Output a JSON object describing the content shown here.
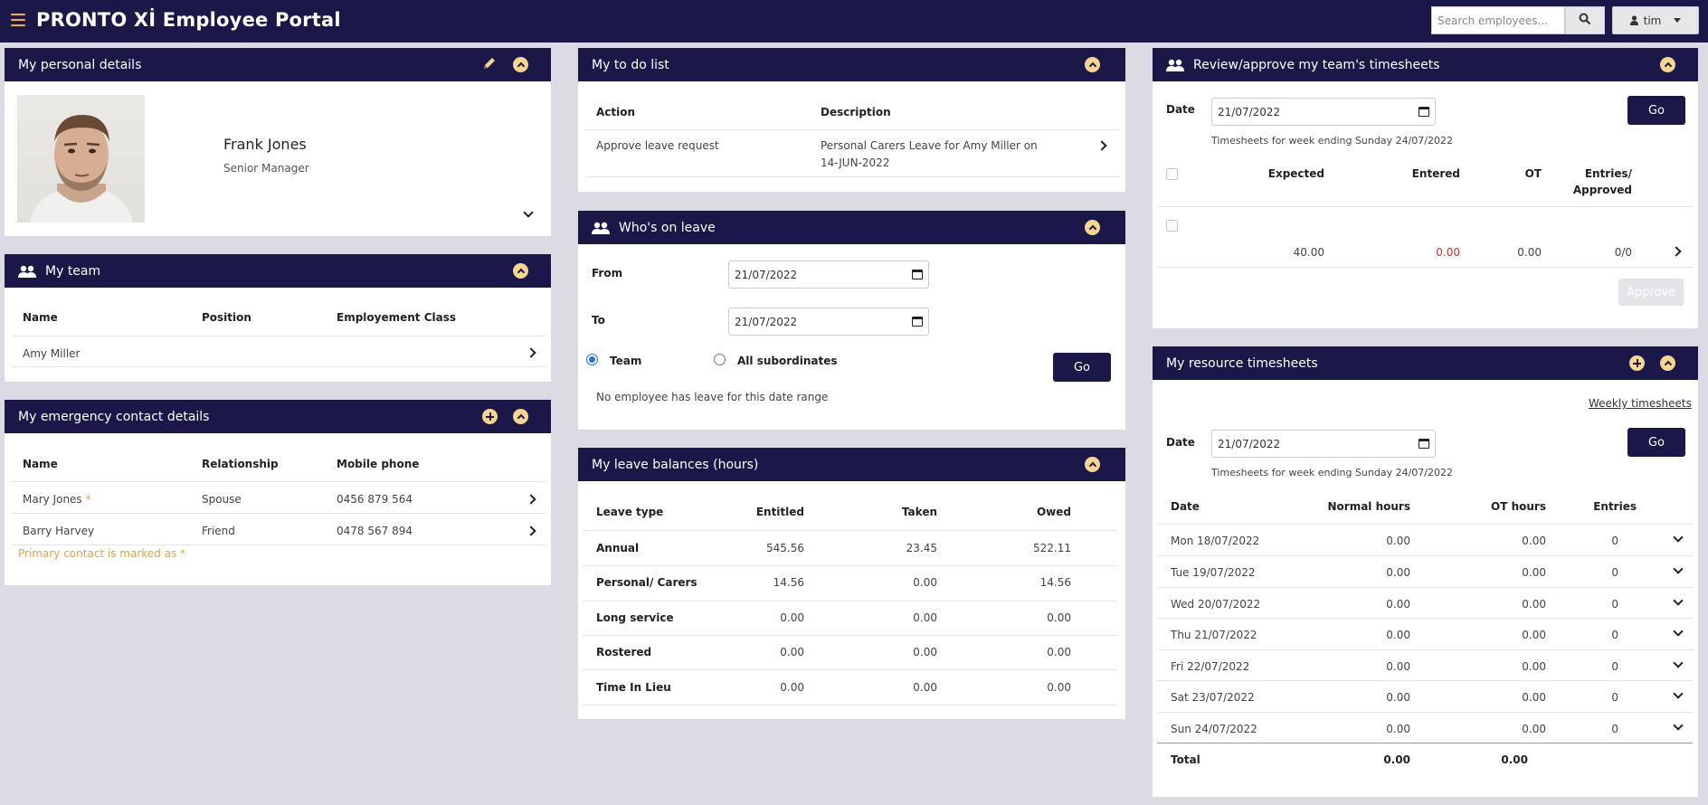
{
  "header": {
    "brand": "PRONTO Xİ Employee Portal",
    "search_placeholder": "Search employees...",
    "user": "tim"
  },
  "personal": {
    "title": "My personal details",
    "name": "Frank Jones",
    "role": "Senior Manager"
  },
  "team": {
    "title": "My team",
    "columns": [
      "Name",
      "Position",
      "Employement Class"
    ],
    "rows": [
      {
        "name": "Amy Miller",
        "position": "",
        "class": ""
      }
    ]
  },
  "emergency": {
    "title": "My emergency contact details",
    "columns": [
      "Name",
      "Relationship",
      "Mobile phone"
    ],
    "rows": [
      {
        "name": "Mary Jones",
        "star": "*",
        "relationship": "Spouse",
        "phone": "0456 879 564"
      },
      {
        "name": "Barry Harvey",
        "star": "",
        "relationship": "Friend",
        "phone": "0478 567 894"
      }
    ],
    "note": "Primary contact is marked as *"
  },
  "todo": {
    "title": "My to do list",
    "columns": [
      "Action",
      "Description"
    ],
    "rows": [
      {
        "action": "Approve leave request",
        "desc_line1": "Personal Carers Leave for Amy Miller on",
        "desc_line2": "14-JUN-2022"
      }
    ]
  },
  "leave": {
    "title": "Who's on leave",
    "from_label": "From",
    "from_value": "21/07/2022",
    "to_label": "To",
    "to_value": "21/07/2022",
    "radio_team": "Team",
    "radio_all": "All subordinates",
    "go": "Go",
    "empty": "No employee has leave for this date range"
  },
  "balances": {
    "title": "My leave balances (hours)",
    "columns": [
      "Leave type",
      "Entitled",
      "Taken",
      "Owed"
    ],
    "rows": [
      {
        "type": "Annual",
        "entitled": "545.56",
        "taken": "23.45",
        "owed": "522.11"
      },
      {
        "type": "Personal/ Carers",
        "entitled": "14.56",
        "taken": "0.00",
        "owed": "14.56"
      },
      {
        "type": "Long service",
        "entitled": "0.00",
        "taken": "0.00",
        "owed": "0.00"
      },
      {
        "type": "Rostered",
        "entitled": "0.00",
        "taken": "0.00",
        "owed": "0.00"
      },
      {
        "type": "Time In Lieu",
        "entitled": "0.00",
        "taken": "0.00",
        "owed": "0.00"
      }
    ]
  },
  "review": {
    "title": "Review/approve my team's timesheets",
    "date_label": "Date",
    "date_value": "21/07/2022",
    "go": "Go",
    "week_note": "Timesheets for week ending Sunday 24/07/2022",
    "columns": [
      "Expected",
      "Entered",
      "OT",
      "Entries/",
      "Approved"
    ],
    "row": {
      "expected": "40.00",
      "entered": "0.00",
      "ot": "0.00",
      "entries": "0/0"
    },
    "approve": "Approve",
    "entered_color": "#c0392b"
  },
  "resource": {
    "title": "My resource timesheets",
    "weekly_link": "Weekly timesheets",
    "date_label": "Date",
    "date_value": "21/07/2022",
    "go": "Go",
    "week_note": "Timesheets for week ending Sunday 24/07/2022",
    "columns": [
      "Date",
      "Normal hours",
      "OT hours",
      "Entries"
    ],
    "rows": [
      {
        "date": "Mon 18/07/2022",
        "normal": "0.00",
        "ot": "0.00",
        "entries": "0"
      },
      {
        "date": "Tue 19/07/2022",
        "normal": "0.00",
        "ot": "0.00",
        "entries": "0"
      },
      {
        "date": "Wed 20/07/2022",
        "normal": "0.00",
        "ot": "0.00",
        "entries": "0"
      },
      {
        "date": "Thu 21/07/2022",
        "normal": "0.00",
        "ot": "0.00",
        "entries": "0"
      },
      {
        "date": "Fri 22/07/2022",
        "normal": "0.00",
        "ot": "0.00",
        "entries": "0"
      },
      {
        "date": "Sat 23/07/2022",
        "normal": "0.00",
        "ot": "0.00",
        "entries": "0"
      },
      {
        "date": "Sun 24/07/2022",
        "normal": "0.00",
        "ot": "0.00",
        "entries": "0"
      }
    ],
    "total_label": "Total",
    "total_normal": "0.00",
    "total_ot": "0.00"
  }
}
